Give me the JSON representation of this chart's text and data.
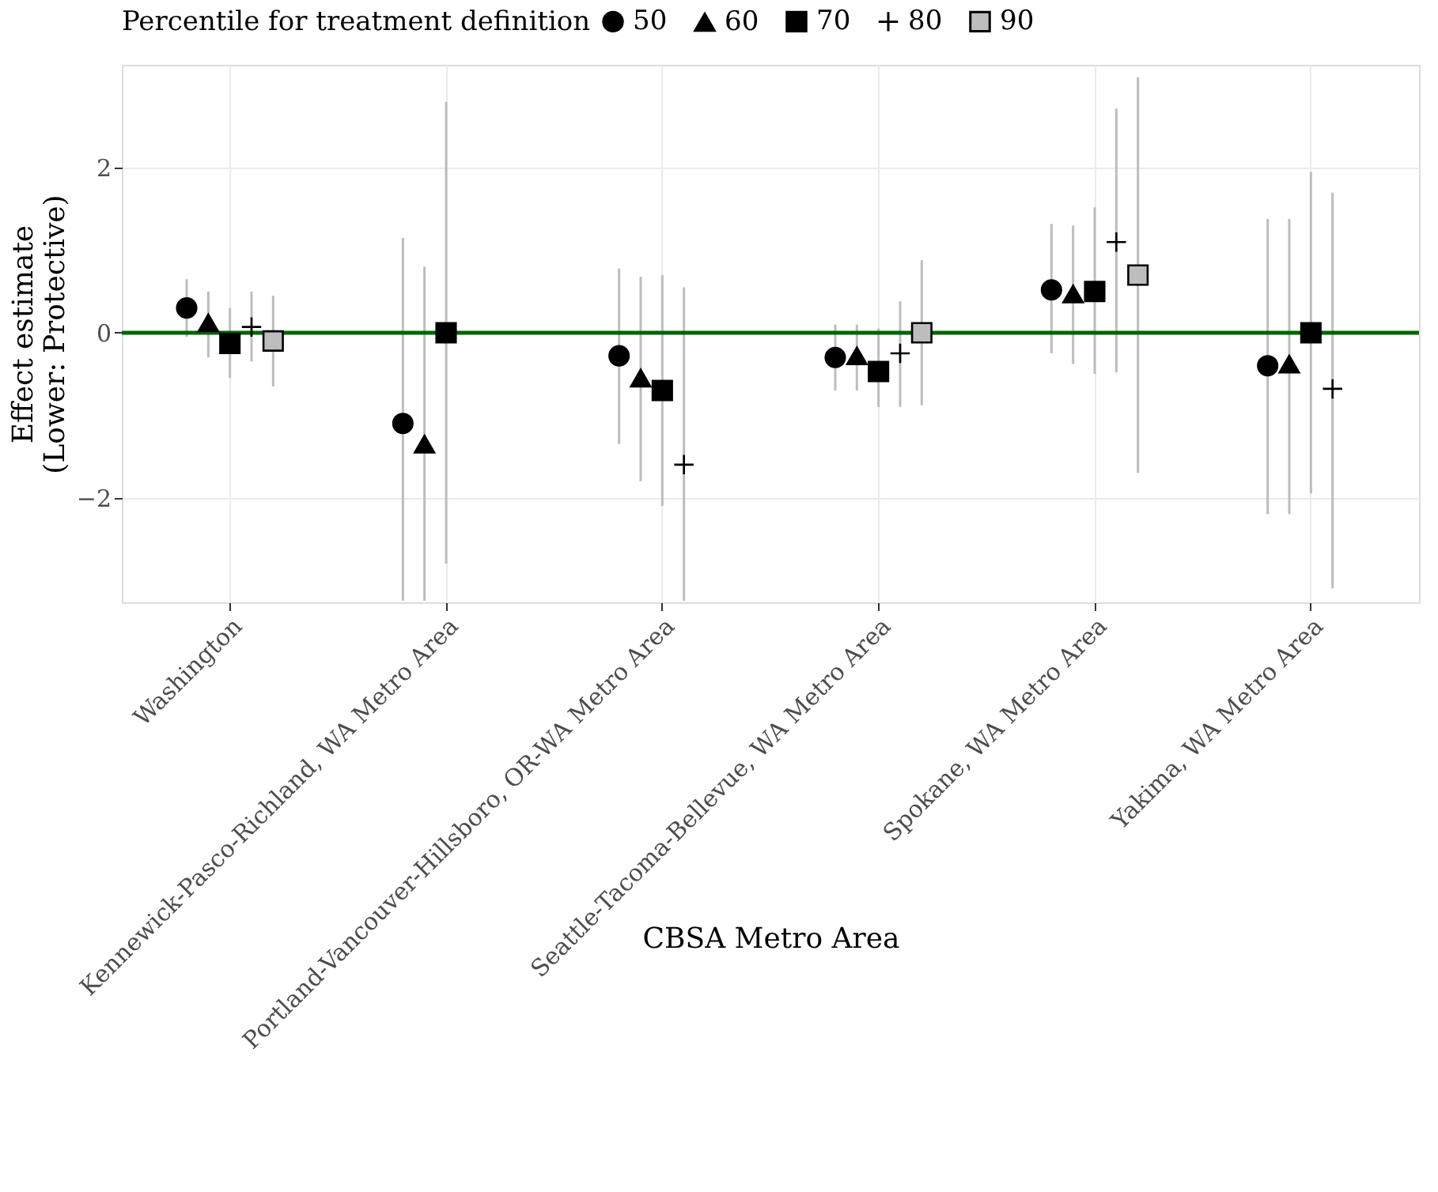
{
  "chart_data": {
    "type": "scatter",
    "xlabel": "CBSA Metro Area",
    "ylabel": "Effect estimate\n(Lower: Protective)",
    "legend_title": "Percentile for treatment definition",
    "categories": [
      "Washington",
      "Kennewick-Pasco-Richland, WA Metro Area",
      "Portland-Vancouver-Hillsboro, OR-WA Metro Area",
      "Seattle-Tacoma-Bellevue, WA Metro Area",
      "Spokane, WA Metro Area",
      "Yakima, WA Metro Area"
    ],
    "series": [
      {
        "name": "50",
        "color": "#000000",
        "marker": "circle",
        "values": [
          0.3,
          -1.1,
          -0.28,
          -0.3,
          0.52,
          -0.4
        ],
        "errors": [
          [
            -0.05,
            0.65
          ],
          [
            -3.25,
            1.15
          ],
          [
            -1.35,
            0.78
          ],
          [
            -0.7,
            0.1
          ],
          [
            -0.25,
            1.32
          ],
          [
            -2.2,
            1.38
          ]
        ]
      },
      {
        "name": "60",
        "color": "#000000",
        "marker": "triangle",
        "values": [
          0.12,
          -1.35,
          -0.55,
          -0.28,
          0.47,
          -0.38
        ],
        "errors": [
          [
            -0.3,
            0.5
          ],
          [
            -3.25,
            0.8
          ],
          [
            -1.8,
            0.68
          ],
          [
            -0.7,
            0.1
          ],
          [
            -0.38,
            1.3
          ],
          [
            -2.2,
            1.38
          ]
        ]
      },
      {
        "name": "70",
        "color": "#000000",
        "marker": "square",
        "values": [
          -0.13,
          0.0,
          -0.7,
          -0.47,
          0.5,
          0.0
        ],
        "errors": [
          [
            -0.55,
            0.3
          ],
          [
            -2.8,
            2.8
          ],
          [
            -2.1,
            0.7
          ],
          [
            -0.9,
            0.05
          ],
          [
            -0.5,
            1.52
          ],
          [
            -1.95,
            1.95
          ]
        ]
      },
      {
        "name": "80",
        "color": "#000000",
        "marker": "cross",
        "values": [
          0.07,
          null,
          -1.6,
          -0.25,
          1.1,
          -0.68
        ],
        "errors": [
          [
            -0.35,
            0.5
          ],
          null,
          [
            -3.25,
            0.55
          ],
          [
            -0.9,
            0.38
          ],
          [
            -0.48,
            2.72
          ],
          [
            -3.1,
            1.7
          ]
        ]
      },
      {
        "name": "90",
        "color": "#bdbdbd",
        "marker": "square",
        "values": [
          -0.1,
          null,
          null,
          0.0,
          0.7,
          null
        ],
        "errors": [
          [
            -0.65,
            0.45
          ],
          null,
          null,
          [
            -0.88,
            0.88
          ],
          [
            -1.7,
            3.1
          ],
          null
        ]
      }
    ],
    "ylim": [
      -3.27,
      3.25
    ],
    "yticks": [
      -2,
      0,
      2
    ],
    "ref_lines": [
      {
        "axis": "y",
        "value": 0,
        "color": "#006400"
      }
    ],
    "grid": true,
    "legend": "top"
  }
}
